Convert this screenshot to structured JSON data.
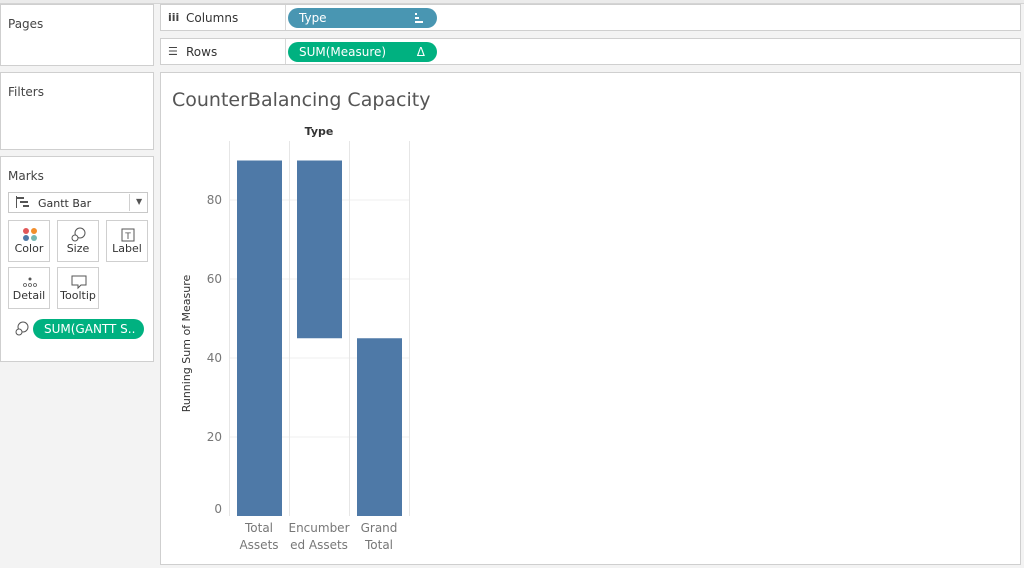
{
  "cards": {
    "pages_title": "Pages",
    "filters_title": "Filters",
    "marks_title": "Marks"
  },
  "shelves": {
    "columns": {
      "label": "Columns",
      "icon": "columns-icon",
      "pill": "Type",
      "pill_color": "#4996b2"
    },
    "rows": {
      "label": "Rows",
      "icon": "rows-icon",
      "pill": "SUM(Measure)",
      "pill_color": "#00b180"
    }
  },
  "marks": {
    "mark_type": "Gantt Bar",
    "buttons": {
      "color": "Color",
      "size": "Size",
      "label": "Label",
      "detail": "Detail",
      "tooltip": "Tooltip"
    },
    "size_pill": "SUM(GANTT S..",
    "size_pill_color": "#00b180"
  },
  "view": {
    "title": "CounterBalancing Capacity"
  },
  "chart_data": {
    "type": "bar",
    "header": "Type",
    "ylabel": "Running Sum of Measure",
    "ylim": [
      0,
      92
    ],
    "yticks": [
      0,
      20,
      40,
      60,
      80
    ],
    "categories": [
      {
        "name": "Total Assets",
        "lines": [
          "Total",
          "Assets"
        ],
        "bottom": 0,
        "top": 90
      },
      {
        "name": "Encumbered Assets",
        "lines": [
          "Encumber",
          "ed Assets"
        ],
        "bottom": 45,
        "top": 90
      },
      {
        "name": "Grand Total",
        "lines": [
          "Grand",
          "Total"
        ],
        "bottom": 0,
        "top": 45
      }
    ],
    "bar_color": "#4e79a7",
    "grid": true
  }
}
